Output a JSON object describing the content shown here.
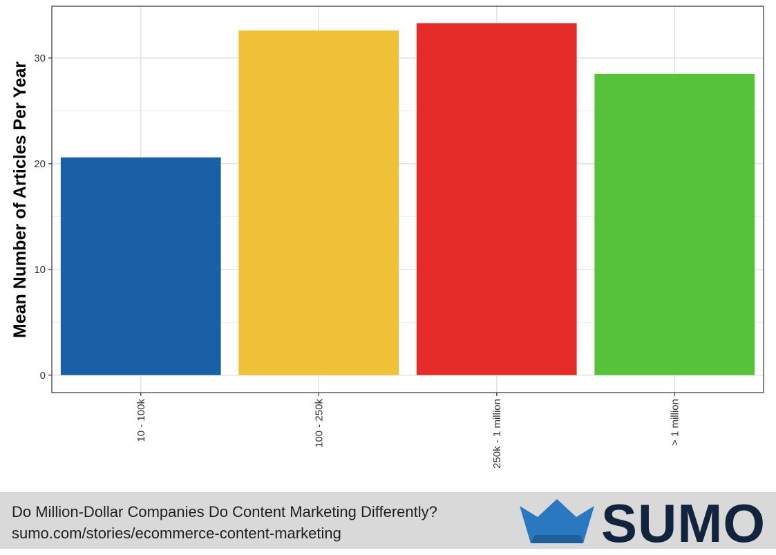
{
  "chart_data": {
    "type": "bar",
    "categories": [
      "10 - 100k",
      "100 - 250k",
      "250k - 1 million",
      "> 1 million"
    ],
    "values": [
      20.6,
      32.6,
      33.3,
      28.5
    ],
    "colors": [
      "#1a60a6",
      "#efc137",
      "#e62c28",
      "#56c23a"
    ],
    "title": "",
    "xlabel": "",
    "ylabel": "Mean Number of Articles Per Year",
    "ylim": [
      -1.65,
      34.9
    ],
    "yticks": [
      0,
      10,
      20,
      30
    ],
    "grid": true,
    "legend": "none"
  },
  "footer": {
    "title": "Do Million-Dollar Companies Do Content Marketing Differently?",
    "url": "sumo.com/stories/ecommerce-content-marketing",
    "logo_text": "SUMO",
    "logo_color": "#12233d",
    "crown_color": "#2a79c0",
    "crown_icon": "crown-icon"
  }
}
